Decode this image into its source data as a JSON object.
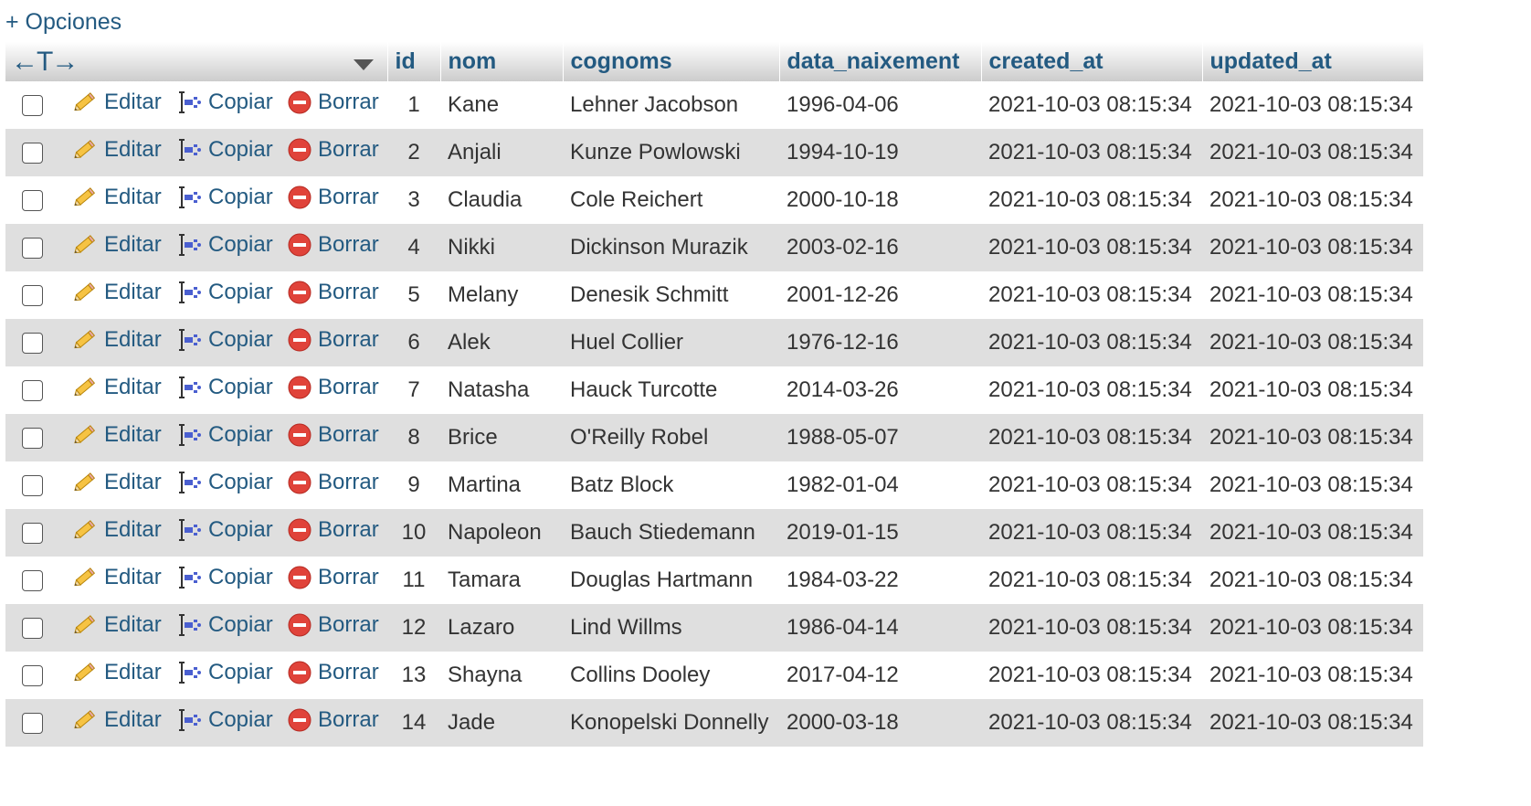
{
  "options_link": "+ Opciones",
  "header": {
    "arrows": "←T→",
    "columns": [
      "id",
      "nom",
      "cognoms",
      "data_naixement",
      "created_at",
      "updated_at"
    ]
  },
  "actions": {
    "edit": "Editar",
    "copy": "Copiar",
    "delete": "Borrar"
  },
  "icons": {
    "edit": "pencil-icon",
    "copy": "copy-row-icon",
    "delete": "delete-icon",
    "sort": "triangle-down-icon"
  },
  "colors": {
    "link": "#235a81",
    "row_alt": "#dfdfdf",
    "delete_icon": "#e0433a"
  },
  "rows": [
    {
      "id": "1",
      "nom": "Kane",
      "cognoms": "Lehner Jacobson",
      "data_naixement": "1996-04-06",
      "created_at": "2021-10-03 08:15:34",
      "updated_at": "2021-10-03 08:15:34"
    },
    {
      "id": "2",
      "nom": "Anjali",
      "cognoms": "Kunze Powlowski",
      "data_naixement": "1994-10-19",
      "created_at": "2021-10-03 08:15:34",
      "updated_at": "2021-10-03 08:15:34"
    },
    {
      "id": "3",
      "nom": "Claudia",
      "cognoms": "Cole Reichert",
      "data_naixement": "2000-10-18",
      "created_at": "2021-10-03 08:15:34",
      "updated_at": "2021-10-03 08:15:34"
    },
    {
      "id": "4",
      "nom": "Nikki",
      "cognoms": "Dickinson Murazik",
      "data_naixement": "2003-02-16",
      "created_at": "2021-10-03 08:15:34",
      "updated_at": "2021-10-03 08:15:34"
    },
    {
      "id": "5",
      "nom": "Melany",
      "cognoms": "Denesik Schmitt",
      "data_naixement": "2001-12-26",
      "created_at": "2021-10-03 08:15:34",
      "updated_at": "2021-10-03 08:15:34"
    },
    {
      "id": "6",
      "nom": "Alek",
      "cognoms": "Huel Collier",
      "data_naixement": "1976-12-16",
      "created_at": "2021-10-03 08:15:34",
      "updated_at": "2021-10-03 08:15:34"
    },
    {
      "id": "7",
      "nom": "Natasha",
      "cognoms": "Hauck Turcotte",
      "data_naixement": "2014-03-26",
      "created_at": "2021-10-03 08:15:34",
      "updated_at": "2021-10-03 08:15:34"
    },
    {
      "id": "8",
      "nom": "Brice",
      "cognoms": "O'Reilly Robel",
      "data_naixement": "1988-05-07",
      "created_at": "2021-10-03 08:15:34",
      "updated_at": "2021-10-03 08:15:34"
    },
    {
      "id": "9",
      "nom": "Martina",
      "cognoms": "Batz Block",
      "data_naixement": "1982-01-04",
      "created_at": "2021-10-03 08:15:34",
      "updated_at": "2021-10-03 08:15:34"
    },
    {
      "id": "10",
      "nom": "Napoleon",
      "cognoms": "Bauch Stiedemann",
      "data_naixement": "2019-01-15",
      "created_at": "2021-10-03 08:15:34",
      "updated_at": "2021-10-03 08:15:34"
    },
    {
      "id": "11",
      "nom": "Tamara",
      "cognoms": "Douglas Hartmann",
      "data_naixement": "1984-03-22",
      "created_at": "2021-10-03 08:15:34",
      "updated_at": "2021-10-03 08:15:34"
    },
    {
      "id": "12",
      "nom": "Lazaro",
      "cognoms": "Lind Willms",
      "data_naixement": "1986-04-14",
      "created_at": "2021-10-03 08:15:34",
      "updated_at": "2021-10-03 08:15:34"
    },
    {
      "id": "13",
      "nom": "Shayna",
      "cognoms": "Collins Dooley",
      "data_naixement": "2017-04-12",
      "created_at": "2021-10-03 08:15:34",
      "updated_at": "2021-10-03 08:15:34"
    },
    {
      "id": "14",
      "nom": "Jade",
      "cognoms": "Konopelski Donnelly",
      "data_naixement": "2000-03-18",
      "created_at": "2021-10-03 08:15:34",
      "updated_at": "2021-10-03 08:15:34"
    }
  ]
}
